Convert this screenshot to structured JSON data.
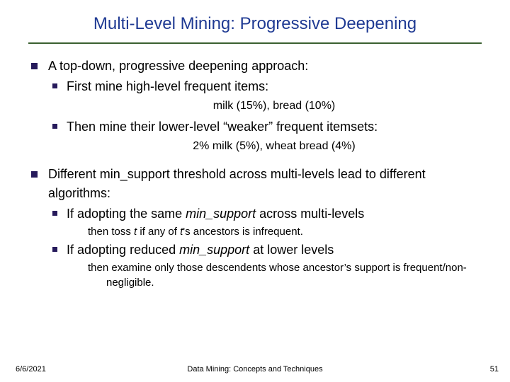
{
  "colors": {
    "title": "#1f3a93",
    "rule": "#3a6030",
    "bullet": "#261a5b",
    "text": "#000000",
    "background": "#ffffff"
  },
  "typography": {
    "title_fontsize": 24,
    "body_fontsize": 18,
    "example_fontsize": 16,
    "subline_fontsize": 15,
    "footer_fontsize": 11,
    "font_family": "Verdana"
  },
  "title": "Multi-Level Mining: Progressive Deepening",
  "b1": {
    "item1": {
      "text": "A top-down, progressive deepening approach:",
      "sub1": {
        "text": " First mine high-level frequent items:",
        "example": "milk (15%), bread (10%)"
      },
      "sub2": {
        "text_a": " Then mine their lower-level “weaker” frequent itemsets:",
        "example": "2% milk (5%), wheat bread (4%)"
      }
    },
    "item2": {
      "text": "Different min_support threshold across multi-levels lead to different algorithms:",
      "sub1": {
        "prefix": " If adopting the same ",
        "ital": "min_support",
        "suffix": " across multi-levels",
        "line_a": "then toss ",
        "line_b": " if any of ",
        "line_c": "'s ancestors is infrequent.",
        "t": "t"
      },
      "sub2": {
        "prefix": " If adopting reduced ",
        "ital": "min_support",
        "suffix": " at lower levels",
        "line": "then examine only those descendents whose ancestor’s support is frequent/non-negligible."
      }
    }
  },
  "footer": {
    "date": "6/6/2021",
    "center": "Data Mining: Concepts and Techniques",
    "page": "51"
  }
}
